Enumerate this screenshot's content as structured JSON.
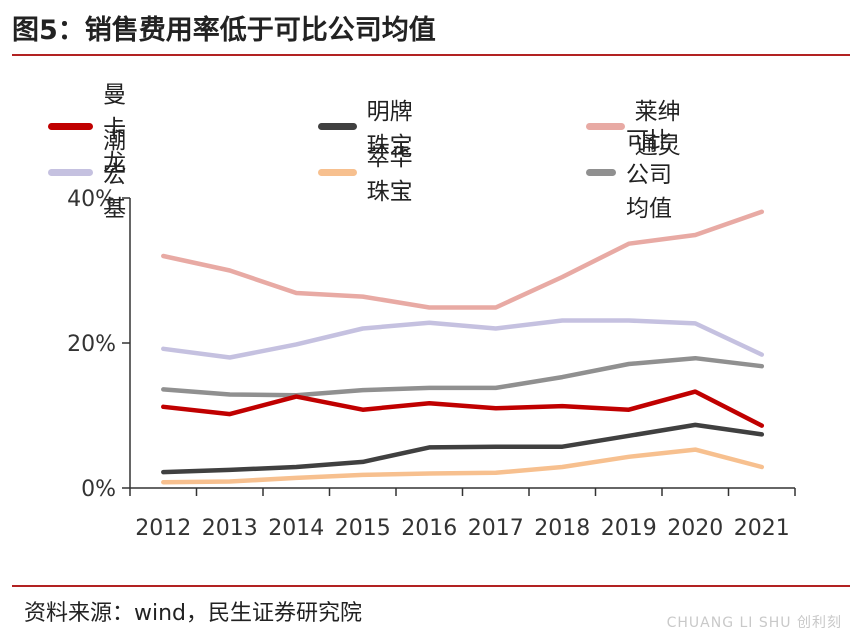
{
  "header": {
    "title": "图5：销售费用率低于可比公司均值"
  },
  "footer": {
    "source": "资料来源：wind，民生证券研究院"
  },
  "chart_data": {
    "type": "line",
    "categories": [
      "2012",
      "2013",
      "2014",
      "2015",
      "2016",
      "2017",
      "2018",
      "2019",
      "2020",
      "2021"
    ],
    "y_ticks": [
      "0%",
      "20%",
      "40%"
    ],
    "ylim": [
      0,
      40
    ],
    "grid": false,
    "legend_position": "top",
    "series": [
      {
        "name": "曼卡龙",
        "color": "#c00000",
        "values": [
          11.2,
          10.2,
          12.6,
          10.8,
          11.7,
          11.0,
          11.3,
          10.8,
          13.3,
          8.6
        ]
      },
      {
        "name": "明牌珠宝",
        "color": "#404040",
        "values": [
          2.2,
          2.5,
          2.9,
          3.6,
          5.6,
          5.7,
          5.7,
          7.2,
          8.7,
          7.4
        ]
      },
      {
        "name": "莱绅通灵",
        "color": "#e8aaa4",
        "values": [
          32.0,
          30.0,
          26.9,
          26.4,
          24.9,
          24.9,
          29.1,
          33.7,
          34.9,
          38.1
        ]
      },
      {
        "name": "潮宏基",
        "color": "#c5c1e0",
        "values": [
          19.2,
          18.0,
          19.8,
          22.0,
          22.8,
          22.0,
          23.1,
          23.1,
          22.7,
          18.4
        ]
      },
      {
        "name": "萃华珠宝",
        "color": "#f7c08f",
        "values": [
          0.8,
          0.9,
          1.4,
          1.8,
          2.0,
          2.1,
          2.9,
          4.3,
          5.3,
          2.9
        ]
      },
      {
        "name": "可比公司均值",
        "color": "#909090",
        "values": [
          13.6,
          12.9,
          12.8,
          13.5,
          13.8,
          13.8,
          15.3,
          17.1,
          17.9,
          16.8
        ]
      }
    ]
  },
  "watermark": {
    "text": "CHUANG LI SHU 创利刻"
  }
}
